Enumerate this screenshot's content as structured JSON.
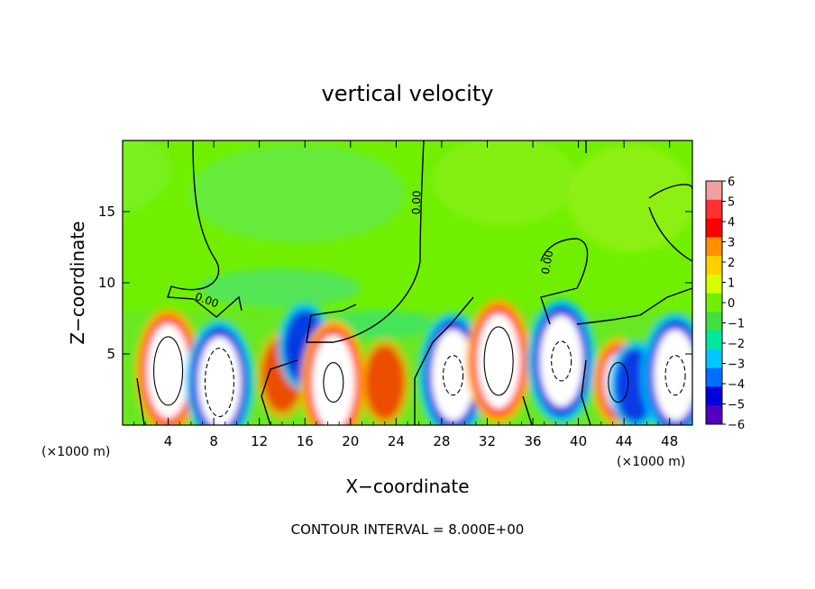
{
  "chart_data": {
    "type": "heatmap",
    "title": "vertical velocity",
    "xlabel": "X−coordinate",
    "ylabel": "Z−coordinate",
    "x_unit_label": "(×1000 m)",
    "y_unit_label": "(×1000 m)",
    "footer": "CONTOUR INTERVAL = 8.000E+00",
    "xlim": [
      0,
      50
    ],
    "ylim": [
      0,
      20
    ],
    "x_ticks": [
      "4",
      "8",
      "12",
      "16",
      "20",
      "24",
      "28",
      "32",
      "36",
      "40",
      "44",
      "48"
    ],
    "y_ticks": [
      "5",
      "10",
      "15"
    ],
    "x_tick_values": [
      4,
      8,
      12,
      16,
      20,
      24,
      28,
      32,
      36,
      40,
      44,
      48
    ],
    "y_tick_values": [
      5,
      10,
      15
    ],
    "colorbar": {
      "labels": [
        "6",
        "5",
        "4",
        "3",
        "2",
        "1",
        "0",
        "−1",
        "−2",
        "−3",
        "−4",
        "−5",
        "−6"
      ],
      "values": [
        6,
        5,
        4,
        3,
        2,
        1,
        0,
        -1,
        -2,
        -3,
        -4,
        -5,
        -6
      ],
      "colors": [
        "#f0a0a0",
        "#ff3030",
        "#ff0000",
        "#ff9000",
        "#ffd000",
        "#d8ff00",
        "#70f000",
        "#40e040",
        "#00e8a0",
        "#00c8ff",
        "#0070ff",
        "#0000e0",
        "#5000c0"
      ]
    },
    "contour_labels": [
      "0.00",
      "0.00",
      "0.00"
    ],
    "features": [
      {
        "kind": "updraft",
        "x": 4.0,
        "z": 3.8,
        "w": 40
      },
      {
        "kind": "downdraft",
        "x": 8.5,
        "z": 3.0,
        "w": -40
      },
      {
        "kind": "updraft",
        "x": 14.0,
        "z": 3.5,
        "w": 4
      },
      {
        "kind": "downdraft",
        "x": 16.0,
        "z": 5.5,
        "w": -5
      },
      {
        "kind": "updraft",
        "x": 18.5,
        "z": 3.0,
        "w": 25
      },
      {
        "kind": "updraft",
        "x": 23.0,
        "z": 3.0,
        "w": 4
      },
      {
        "kind": "downdraft",
        "x": 29.0,
        "z": 3.5,
        "w": -30
      },
      {
        "kind": "updraft",
        "x": 33.0,
        "z": 4.5,
        "w": 45
      },
      {
        "kind": "downdraft",
        "x": 38.5,
        "z": 4.5,
        "w": -30
      },
      {
        "kind": "updraft",
        "x": 43.5,
        "z": 3.0,
        "w": 20
      },
      {
        "kind": "downdraft",
        "x": 45.0,
        "z": 2.8,
        "w": -10
      },
      {
        "kind": "downdraft",
        "x": 48.5,
        "z": 3.5,
        "w": -25
      }
    ]
  }
}
